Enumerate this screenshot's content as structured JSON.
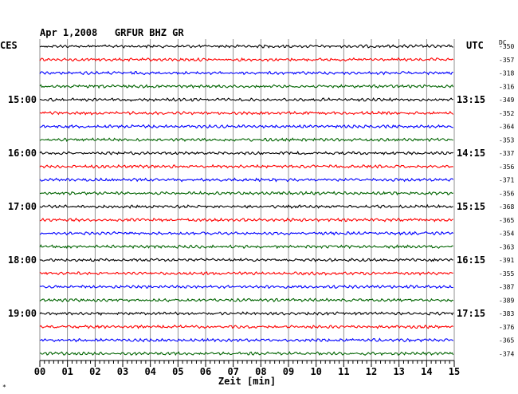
{
  "header": {
    "title": "Apr 1,2008   GRFUR BHZ GR",
    "left_zone": "CES",
    "right_zone": "UTC",
    "dc_label": "DC"
  },
  "chart_data": {
    "type": "line",
    "title": "Apr 1,2008   GRFUR BHZ GR",
    "xlabel": "Zeit [min]",
    "xlim": [
      0,
      15
    ],
    "x_ticks": [
      "00",
      "01",
      "02",
      "03",
      "04",
      "05",
      "06",
      "07",
      "08",
      "09",
      "10",
      "11",
      "12",
      "13",
      "14",
      "15"
    ],
    "trace_colors": [
      "#000000",
      "#ff0000",
      "#0000ff",
      "#006400"
    ],
    "left_time_labels": [
      "15:00",
      "16:00",
      "17:00",
      "18:00",
      "19:00"
    ],
    "right_time_labels": [
      "13:15",
      "14:15",
      "15:15",
      "16:15",
      "17:15"
    ],
    "time_label_every_n_traces": 4,
    "dc_offsets": [
      -350,
      -357,
      -318,
      -316,
      -349,
      -352,
      -364,
      -353,
      -337,
      -356,
      -371,
      -356,
      -368,
      -365,
      -354,
      -363,
      -391,
      -355,
      -387,
      -389,
      -383,
      -376,
      -365,
      -374
    ],
    "footer_mark": "*"
  }
}
